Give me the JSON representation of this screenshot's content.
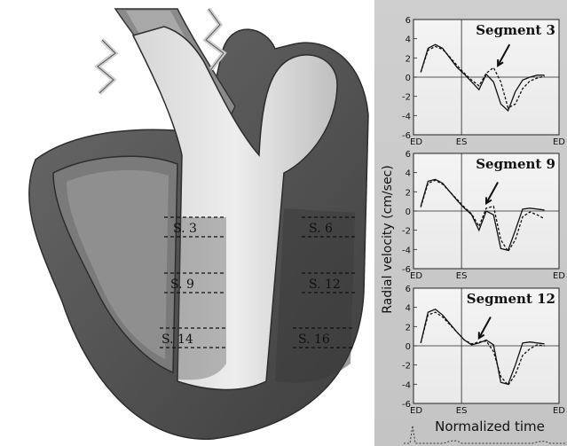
{
  "heart": {
    "segment_labels": [
      "S. 3",
      "S. 6",
      "S. 9",
      "S. 12",
      "S. 14",
      "S. 16"
    ]
  },
  "plots": {
    "y_axis_label": "Radial velocity (cm/sec)",
    "x_axis_label": "Normalized time",
    "y_ticks": [
      "6",
      "4",
      "2",
      "0",
      "-2",
      "-4",
      "-6"
    ],
    "x_ticks": [
      "ED",
      "ES",
      "ED"
    ],
    "panels": [
      {
        "title": "Segment 3"
      },
      {
        "title": "Segment 9"
      },
      {
        "title": "Segment 12"
      }
    ]
  },
  "chart_data": [
    {
      "type": "line",
      "title": "Segment 3",
      "ylabel": "Radial velocity (cm/sec)",
      "ylim": [
        -6,
        6
      ],
      "x_ticks": [
        "ED",
        "ES",
        "ED"
      ],
      "series": [
        {
          "x": [
            0.05,
            0.1,
            0.15,
            0.2,
            0.25,
            0.3,
            0.35,
            0.4,
            0.45,
            0.5,
            0.55,
            0.6,
            0.65,
            0.7,
            0.75,
            0.8,
            0.85,
            0.9
          ],
          "values": [
            0.5,
            3.0,
            3.4,
            3.0,
            2.0,
            1.0,
            0.3,
            -0.5,
            -1.3,
            0.3,
            -0.5,
            -2.8,
            -3.5,
            -1.5,
            -0.3,
            0.0,
            0.2,
            0.2
          ]
        },
        {
          "x": [
            0.05,
            0.1,
            0.15,
            0.2,
            0.25,
            0.3,
            0.35,
            0.4,
            0.45,
            0.5,
            0.55,
            0.6,
            0.65,
            0.7,
            0.75,
            0.8,
            0.85,
            0.9
          ],
          "values": [
            0.5,
            2.8,
            3.2,
            2.9,
            2.1,
            1.2,
            0.4,
            -0.3,
            -0.9,
            0.4,
            1.0,
            -0.5,
            -3.2,
            -2.8,
            -1.2,
            -0.4,
            -0.1,
            0.1
          ]
        }
      ]
    },
    {
      "type": "line",
      "title": "Segment 9",
      "ylabel": "Radial velocity (cm/sec)",
      "ylim": [
        -6,
        6
      ],
      "x_ticks": [
        "ED",
        "ES",
        "ED"
      ],
      "series": [
        {
          "x": [
            0.05,
            0.1,
            0.15,
            0.2,
            0.25,
            0.3,
            0.35,
            0.4,
            0.45,
            0.5,
            0.55,
            0.6,
            0.65,
            0.7,
            0.75,
            0.8,
            0.85,
            0.9
          ],
          "values": [
            0.5,
            3.1,
            3.3,
            2.9,
            2.0,
            1.1,
            0.3,
            -0.4,
            -2.0,
            0.0,
            -0.4,
            -3.9,
            -4.1,
            -2.0,
            0.2,
            0.3,
            0.2,
            0.1
          ]
        },
        {
          "x": [
            0.05,
            0.1,
            0.15,
            0.2,
            0.25,
            0.3,
            0.35,
            0.4,
            0.45,
            0.5,
            0.55,
            0.6,
            0.65,
            0.7,
            0.75,
            0.8,
            0.85,
            0.9
          ],
          "values": [
            0.4,
            2.9,
            3.2,
            2.8,
            2.0,
            1.2,
            0.4,
            -0.3,
            -1.6,
            0.3,
            0.5,
            -3.0,
            -4.2,
            -3.0,
            -0.6,
            -0.1,
            -0.4,
            -0.8
          ]
        }
      ]
    },
    {
      "type": "line",
      "title": "Segment 12",
      "ylabel": "Radial velocity (cm/sec)",
      "ylim": [
        -6,
        6
      ],
      "x_ticks": [
        "ED",
        "ES",
        "ED"
      ],
      "series": [
        {
          "x": [
            0.05,
            0.1,
            0.15,
            0.2,
            0.25,
            0.3,
            0.35,
            0.4,
            0.45,
            0.5,
            0.55,
            0.6,
            0.65,
            0.7,
            0.75,
            0.8,
            0.85,
            0.9
          ],
          "values": [
            0.3,
            3.5,
            3.8,
            3.2,
            2.3,
            1.4,
            0.6,
            0.1,
            0.3,
            0.6,
            0.1,
            -3.8,
            -4.0,
            -2.0,
            0.3,
            0.4,
            0.3,
            0.2
          ]
        },
        {
          "x": [
            0.05,
            0.1,
            0.15,
            0.2,
            0.25,
            0.3,
            0.35,
            0.4,
            0.45,
            0.5,
            0.55,
            0.6,
            0.65,
            0.7,
            0.75,
            0.8,
            0.85,
            0.9
          ],
          "values": [
            0.3,
            3.2,
            3.5,
            3.0,
            2.2,
            1.4,
            0.6,
            0.2,
            0.4,
            0.5,
            -0.6,
            -3.2,
            -4.1,
            -3.0,
            -1.0,
            -0.3,
            0.1,
            0.0
          ]
        }
      ]
    }
  ]
}
